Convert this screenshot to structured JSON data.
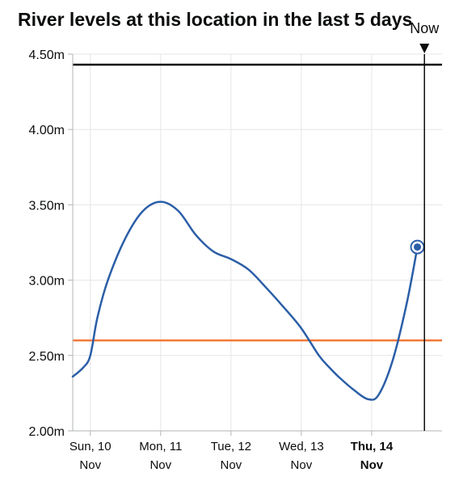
{
  "chart_data": {
    "type": "line",
    "title": "River levels at this location in the last 5 days",
    "now_label": "Now",
    "y_ticks": [
      {
        "value": 2.0,
        "label": "2.00m"
      },
      {
        "value": 2.5,
        "label": "2.50m"
      },
      {
        "value": 3.0,
        "label": "3.00m"
      },
      {
        "value": 3.5,
        "label": "3.50m"
      },
      {
        "value": 4.0,
        "label": "4.00m"
      },
      {
        "value": 4.5,
        "label": "4.50m"
      }
    ],
    "ylim": [
      2.0,
      4.5
    ],
    "xlim": [
      -0.25,
      5.0
    ],
    "x_ticks": [
      {
        "x": 0,
        "day": "Sun, 10",
        "month": "Nov",
        "bold": false
      },
      {
        "x": 1,
        "day": "Mon, 11",
        "month": "Nov",
        "bold": false
      },
      {
        "x": 2,
        "day": "Tue, 12",
        "month": "Nov",
        "bold": false
      },
      {
        "x": 3,
        "day": "Wed, 13",
        "month": "Nov",
        "bold": false
      },
      {
        "x": 4,
        "day": "Thu, 14",
        "month": "Nov",
        "bold": true
      }
    ],
    "now_x": 4.75,
    "thresholds": [
      {
        "value": 4.43,
        "color": "#0b0c0c"
      },
      {
        "value": 2.6,
        "color": "#f47738"
      }
    ],
    "series": [
      {
        "color": "#2b5ea7",
        "points": [
          [
            -0.25,
            2.36
          ],
          [
            -0.1,
            2.42
          ],
          [
            0.0,
            2.5
          ],
          [
            0.1,
            2.75
          ],
          [
            0.25,
            3.0
          ],
          [
            0.5,
            3.28
          ],
          [
            0.75,
            3.46
          ],
          [
            1.0,
            3.52
          ],
          [
            1.25,
            3.46
          ],
          [
            1.5,
            3.3
          ],
          [
            1.75,
            3.19
          ],
          [
            2.0,
            3.14
          ],
          [
            2.25,
            3.07
          ],
          [
            2.5,
            2.95
          ],
          [
            2.75,
            2.82
          ],
          [
            3.0,
            2.68
          ],
          [
            3.25,
            2.5
          ],
          [
            3.4,
            2.42
          ],
          [
            3.55,
            2.35
          ],
          [
            3.75,
            2.27
          ],
          [
            3.95,
            2.21
          ],
          [
            4.1,
            2.24
          ],
          [
            4.3,
            2.47
          ],
          [
            4.5,
            2.85
          ],
          [
            4.65,
            3.22
          ]
        ]
      }
    ],
    "current_point": {
      "x": 4.65,
      "y": 3.22,
      "color": "#2b5ea7"
    },
    "grid": true,
    "colors": {
      "axis": "#b1b4b6",
      "grid": "#e6e6e6",
      "text": "#0b0c0c"
    }
  }
}
